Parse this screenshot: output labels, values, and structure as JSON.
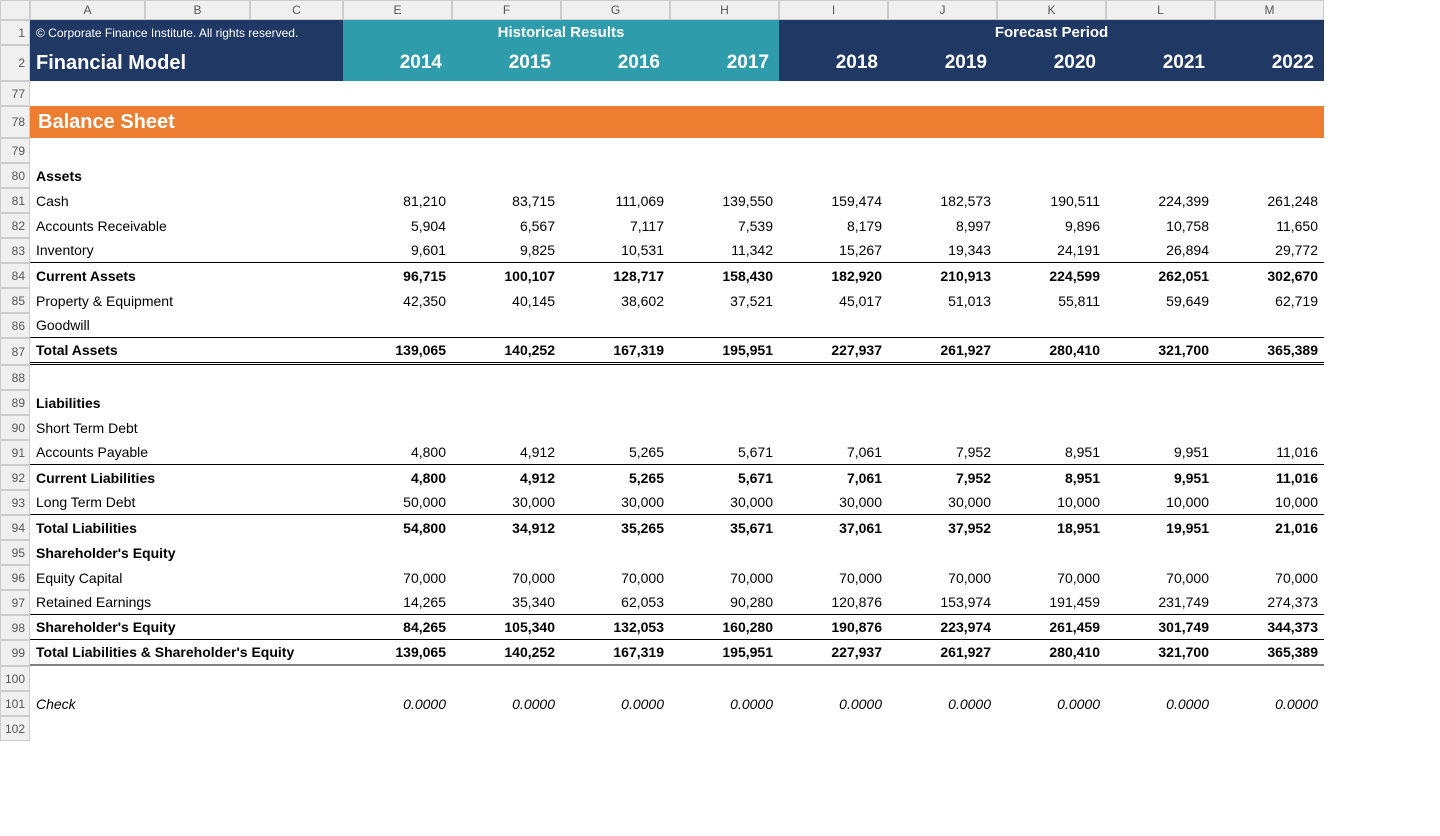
{
  "columns": [
    "A",
    "B",
    "C",
    "E",
    "F",
    "G",
    "H",
    "I",
    "J",
    "K",
    "L",
    "M"
  ],
  "row_numbers": [
    "1",
    "2",
    "77",
    "78",
    "79",
    "80",
    "81",
    "82",
    "83",
    "84",
    "85",
    "86",
    "87",
    "88",
    "89",
    "90",
    "91",
    "92",
    "93",
    "94",
    "95",
    "96",
    "97",
    "98",
    "99",
    "100",
    "101",
    "102"
  ],
  "copyright": "© Corporate Finance Institute. All rights reserved.",
  "title": "Financial Model",
  "historical_label": "Historical Results",
  "forecast_label": "Forecast Period",
  "years": [
    "2014",
    "2015",
    "2016",
    "2017",
    "2018",
    "2019",
    "2020",
    "2021",
    "2022"
  ],
  "section": "Balance Sheet",
  "headers": {
    "assets": "Assets",
    "liabilities": "Liabilities",
    "she": "Shareholder's Equity"
  },
  "rows": {
    "cash": {
      "label": "Cash",
      "vals": [
        "81,210",
        "83,715",
        "111,069",
        "139,550",
        "159,474",
        "182,573",
        "190,511",
        "224,399",
        "261,248"
      ]
    },
    "ar": {
      "label": "Accounts Receivable",
      "vals": [
        "5,904",
        "6,567",
        "7,117",
        "7,539",
        "8,179",
        "8,997",
        "9,896",
        "10,758",
        "11,650"
      ]
    },
    "inventory": {
      "label": "Inventory",
      "vals": [
        "9,601",
        "9,825",
        "10,531",
        "11,342",
        "15,267",
        "19,343",
        "24,191",
        "26,894",
        "29,772"
      ]
    },
    "current_assets": {
      "label": "Current Assets",
      "vals": [
        "96,715",
        "100,107",
        "128,717",
        "158,430",
        "182,920",
        "210,913",
        "224,599",
        "262,051",
        "302,670"
      ]
    },
    "ppe": {
      "label": "Property & Equipment",
      "vals": [
        "42,350",
        "40,145",
        "38,602",
        "37,521",
        "45,017",
        "51,013",
        "55,811",
        "59,649",
        "62,719"
      ]
    },
    "goodwill": {
      "label": "Goodwill",
      "vals": [
        "",
        "",
        "",
        "",
        "",
        "",
        "",
        "",
        ""
      ]
    },
    "total_assets": {
      "label": "Total Assets",
      "vals": [
        "139,065",
        "140,252",
        "167,319",
        "195,951",
        "227,937",
        "261,927",
        "280,410",
        "321,700",
        "365,389"
      ]
    },
    "std": {
      "label": "Short Term Debt",
      "vals": [
        "",
        "",
        "",
        "",
        "",
        "",
        "",
        "",
        ""
      ]
    },
    "ap": {
      "label": "Accounts Payable",
      "vals": [
        "4,800",
        "4,912",
        "5,265",
        "5,671",
        "7,061",
        "7,952",
        "8,951",
        "9,951",
        "11,016"
      ]
    },
    "current_liab": {
      "label": "Current Liabilities",
      "vals": [
        "4,800",
        "4,912",
        "5,265",
        "5,671",
        "7,061",
        "7,952",
        "8,951",
        "9,951",
        "11,016"
      ]
    },
    "ltd": {
      "label": "Long Term Debt",
      "vals": [
        "50,000",
        "30,000",
        "30,000",
        "30,000",
        "30,000",
        "30,000",
        "10,000",
        "10,000",
        "10,000"
      ]
    },
    "total_liab": {
      "label": "Total Liabilities",
      "vals": [
        "54,800",
        "34,912",
        "35,265",
        "35,671",
        "37,061",
        "37,952",
        "18,951",
        "19,951",
        "21,016"
      ]
    },
    "eq_capital": {
      "label": "Equity Capital",
      "vals": [
        "70,000",
        "70,000",
        "70,000",
        "70,000",
        "70,000",
        "70,000",
        "70,000",
        "70,000",
        "70,000"
      ]
    },
    "ret_earn": {
      "label": "Retained Earnings",
      "vals": [
        "14,265",
        "35,340",
        "62,053",
        "90,280",
        "120,876",
        "153,974",
        "191,459",
        "231,749",
        "274,373"
      ]
    },
    "she_total": {
      "label": "Shareholder's Equity",
      "vals": [
        "84,265",
        "105,340",
        "132,053",
        "160,280",
        "190,876",
        "223,974",
        "261,459",
        "301,749",
        "344,373"
      ]
    },
    "tlse": {
      "label": "Total Liabilities & Shareholder's Equity",
      "vals": [
        "139,065",
        "140,252",
        "167,319",
        "195,951",
        "227,937",
        "261,927",
        "280,410",
        "321,700",
        "365,389"
      ]
    },
    "check": {
      "label": "Check",
      "vals": [
        "0.0000",
        "0.0000",
        "0.0000",
        "0.0000",
        "0.0000",
        "0.0000",
        "0.0000",
        "0.0000",
        "0.0000"
      ]
    }
  },
  "colors": {
    "navy": "#1f3864",
    "teal": "#2e9cab",
    "orange": "#ed7d31",
    "header_grey": "#f0f0f0",
    "border_grey": "#cccccc"
  }
}
